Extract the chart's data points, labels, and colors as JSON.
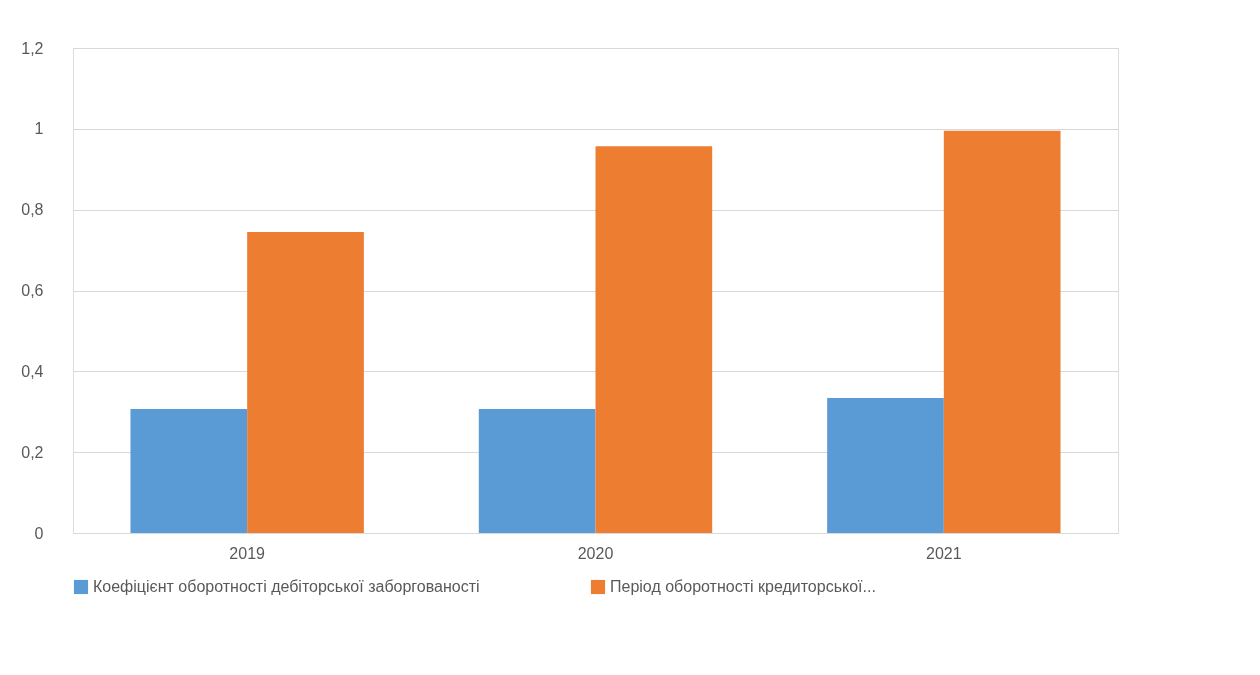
{
  "chart_data": {
    "type": "bar",
    "categories": [
      "2019",
      "2020",
      "2021"
    ],
    "series": [
      {
        "name": "Коефіцієнт оборотності дебіторської заборгованості",
        "color": "#5b9bd5",
        "values": [
          0.307,
          0.307,
          0.334
        ]
      },
      {
        "name": "Період оборотності кредиторської...",
        "color": "#ed7d31",
        "values": [
          0.745,
          0.957,
          0.995
        ]
      }
    ],
    "ylim": [
      0,
      1.2
    ],
    "yticks": [
      {
        "value": 0,
        "label": "0"
      },
      {
        "value": 0.2,
        "label": "0,2"
      },
      {
        "value": 0.4,
        "label": "0,4"
      },
      {
        "value": 0.6,
        "label": "0,6"
      },
      {
        "value": 0.8,
        "label": "0,8"
      },
      {
        "value": 1,
        "label": "1"
      },
      {
        "value": 1.2,
        "label": "1,2"
      }
    ],
    "grid": "y",
    "legend": "bottom"
  }
}
